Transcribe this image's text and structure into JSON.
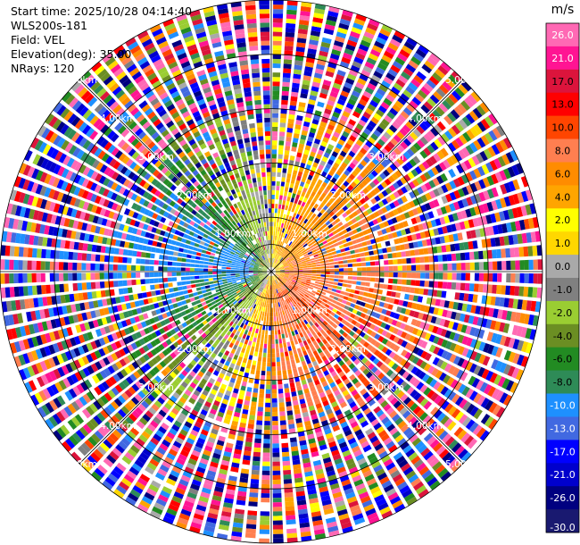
{
  "header": {
    "start_label": "Start time:",
    "start_time": "2025/10/28 04:14:40",
    "site": "WLS200s-181",
    "field_label": "Field:",
    "field": "VEL",
    "elevation_label": "Elevation(deg):",
    "elevation": "35.00",
    "nrays_label": "NRays:",
    "nrays": "120"
  },
  "colorbar": {
    "unit": "m/s",
    "levels": [
      "26.0",
      "21.0",
      "17.0",
      "13.0",
      "10.0",
      "8.0",
      "6.0",
      "4.0",
      "2.0",
      "1.0",
      "0.0",
      "-1.0",
      "-2.0",
      "-4.0",
      "-6.0",
      "-8.0",
      "-10.0",
      "-13.0",
      "-17.0",
      "-21.0",
      "-26.0",
      "-30.0"
    ],
    "colors": [
      "#ff69b4",
      "#ff1493",
      "#dc143c",
      "#ff0000",
      "#ff4500",
      "#ff7f50",
      "#ff8c00",
      "#ffa500",
      "#ffff00",
      "#ffd700",
      "#a9a9a9",
      "#808080",
      "#9acd32",
      "#6b8e23",
      "#228b22",
      "#2e8b57",
      "#1e90ff",
      "#4169e1",
      "#0000ff",
      "#0000cd",
      "#000080",
      "#191970"
    ]
  },
  "chart_data": {
    "type": "heatmap",
    "projection": "polar (PPI)",
    "field": "VEL",
    "unit": "m/s",
    "nrays": 120,
    "range_ring_labels": [
      "1.00km",
      "2.00km",
      "3.00km",
      "4.00km",
      "5.00km"
    ],
    "rings_km": [
      1,
      2,
      3,
      4,
      5
    ],
    "max_range_km": 5,
    "gates_per_ray": 60,
    "grid": true,
    "legend": "right",
    "pattern": {
      "inner_core": "noisy data beyond ~3 km; coherent flow inside",
      "sectors": [
        {
          "azimuth_deg_from": 225,
          "azimuth_deg_to": 340,
          "label": "receding/negative",
          "typical_value": -6.0
        },
        {
          "azimuth_deg_from": 260,
          "azimuth_deg_to": 300,
          "label": "near-core blue",
          "typical_value": -10.0
        },
        {
          "azimuth_deg_from": 340,
          "azimuth_deg_to": 30,
          "label": "near zero",
          "typical_value": 0.0
        },
        {
          "azimuth_deg_from": 30,
          "azimuth_deg_to": 150,
          "label": "approaching/positive",
          "typical_value": 10.0
        },
        {
          "azimuth_deg_from": 150,
          "azimuth_deg_to": 210,
          "label": "weak positive",
          "typical_value": 4.0
        }
      ]
    }
  }
}
